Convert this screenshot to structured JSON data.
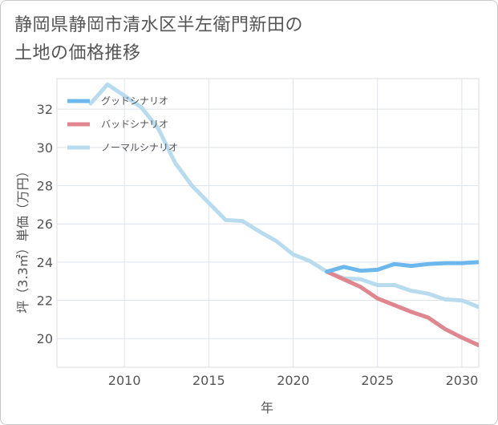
{
  "title_lines": [
    "静岡県静岡市清水区半左衛門新田の",
    "土地の価格推移"
  ],
  "chart_data": {
    "type": "line",
    "xlabel": "年",
    "ylabel": "坪（3.3㎡）単価（万円）",
    "xlim": [
      2006,
      2031
    ],
    "ylim": [
      18.5,
      33.6
    ],
    "x_ticks": [
      2010,
      2015,
      2020,
      2025,
      2030
    ],
    "y_ticks": [
      20,
      22,
      24,
      26,
      28,
      30,
      32
    ],
    "grid": true,
    "legend_position": "top-left",
    "series": [
      {
        "name": "グッドシナリオ",
        "color": "#6cb8ec",
        "x": [
          2022,
          2023,
          2024,
          2025,
          2026,
          2027,
          2028,
          2029,
          2030,
          2031
        ],
        "values": [
          23.5,
          23.75,
          23.55,
          23.6,
          23.9,
          23.8,
          23.9,
          23.95,
          23.95,
          24.0
        ]
      },
      {
        "name": "バッドシナリオ",
        "color": "#e0868f",
        "x": [
          2022,
          2023,
          2024,
          2025,
          2026,
          2027,
          2028,
          2029,
          2030,
          2031
        ],
        "values": [
          23.5,
          23.1,
          22.7,
          22.1,
          21.75,
          21.4,
          21.1,
          20.5,
          20.05,
          19.65
        ]
      },
      {
        "name": "ノーマルシナリオ",
        "color": "#b8dcee",
        "x": [
          2008,
          2009,
          2010,
          2011,
          2012,
          2013,
          2014,
          2015,
          2016,
          2017,
          2018,
          2019,
          2020,
          2021,
          2022,
          2023,
          2024,
          2025,
          2026,
          2027,
          2028,
          2029,
          2030,
          2031
        ],
        "values": [
          32.3,
          33.3,
          32.7,
          32.1,
          31.0,
          29.2,
          28.0,
          27.1,
          26.2,
          26.15,
          25.6,
          25.1,
          24.4,
          24.05,
          23.5,
          23.15,
          23.1,
          22.8,
          22.8,
          22.5,
          22.35,
          22.05,
          22.0,
          21.65
        ]
      }
    ]
  }
}
